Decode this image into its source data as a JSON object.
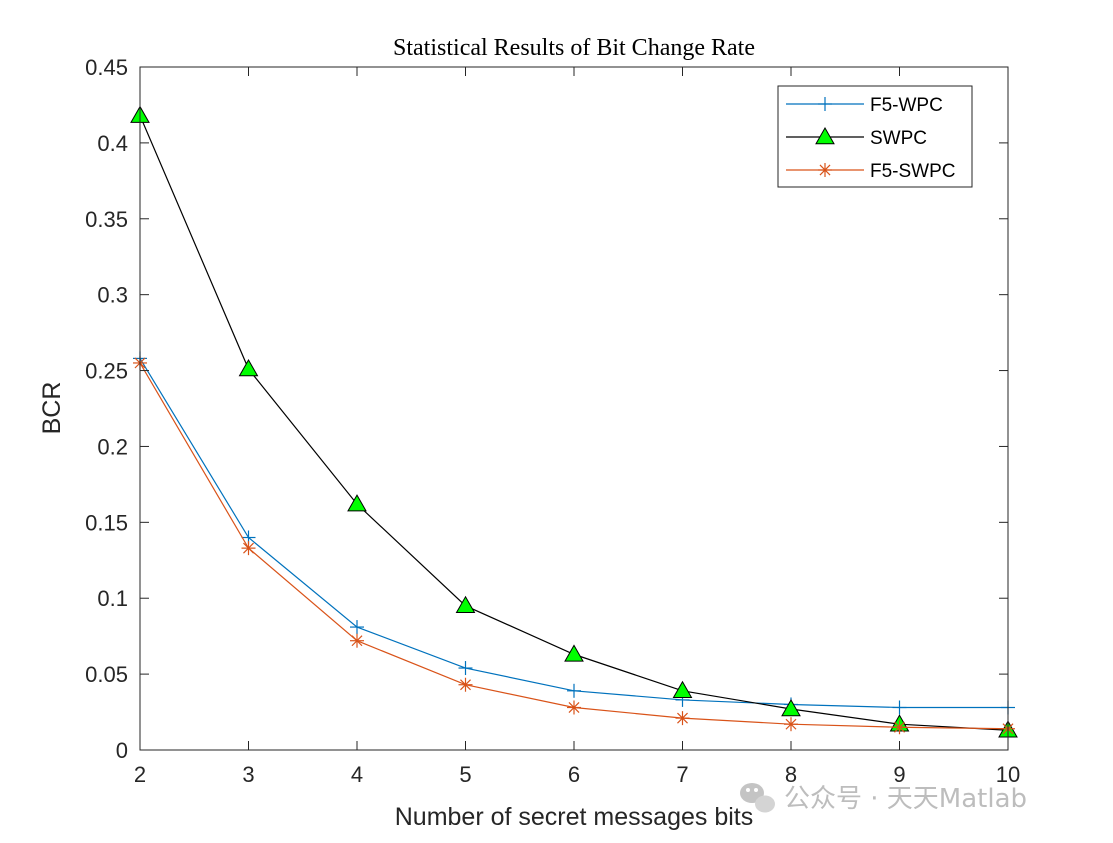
{
  "chart_data": {
    "type": "line",
    "title": "Statistical Results of Bit Change Rate",
    "xlabel": "Number of secret messages bits",
    "ylabel": "BCR",
    "x": [
      2,
      3,
      4,
      5,
      6,
      7,
      8,
      9,
      10
    ],
    "xlim": [
      2,
      10
    ],
    "ylim": [
      0,
      0.45
    ],
    "xticks": [
      "2",
      "3",
      "4",
      "5",
      "6",
      "7",
      "8",
      "9",
      "10"
    ],
    "yticks": [
      "0",
      "0.05",
      "0.1",
      "0.15",
      "0.2",
      "0.25",
      "0.3",
      "0.35",
      "0.4",
      "0.45"
    ],
    "grid": false,
    "legend_position": "top-right",
    "series": [
      {
        "name": "F5-WPC",
        "color": "#0072BD",
        "marker": "plus",
        "values": [
          0.258,
          0.14,
          0.081,
          0.054,
          0.039,
          0.033,
          0.03,
          0.028,
          0.028
        ]
      },
      {
        "name": "SWPC",
        "color": "#000000",
        "marker": "triangle",
        "marker_fill": "#00FF00",
        "values": [
          0.418,
          0.251,
          0.162,
          0.095,
          0.063,
          0.039,
          0.027,
          0.017,
          0.013
        ]
      },
      {
        "name": "F5-SWPC",
        "color": "#D95319",
        "marker": "asterisk",
        "values": [
          0.255,
          0.133,
          0.072,
          0.043,
          0.028,
          0.021,
          0.017,
          0.015,
          0.014
        ]
      }
    ]
  },
  "watermark": {
    "icon": "wechat-icon",
    "text": "公众号 · 天天Matlab"
  }
}
